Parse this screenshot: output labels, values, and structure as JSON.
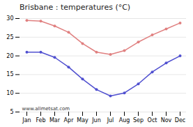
{
  "chart_data": {
    "type": "line",
    "title": "Brisbane : temperatures (°C)",
    "categories": [
      "Jan",
      "Feb",
      "Mar",
      "Apr",
      "May",
      "Jun",
      "Jul",
      "Aug",
      "Sep",
      "Oct",
      "Nov",
      "Dec"
    ],
    "series": [
      {
        "color": "#e08080",
        "marker": "circle",
        "values": [
          29.5,
          29.3,
          28.0,
          26.3,
          23.3,
          21.0,
          20.4,
          21.4,
          23.7,
          25.6,
          27.2,
          28.8
        ]
      },
      {
        "color": "#5050d0",
        "marker": "circle",
        "values": [
          21.0,
          21.0,
          19.6,
          17.0,
          13.8,
          11.0,
          9.3,
          10.1,
          12.5,
          15.7,
          18.1,
          20.0
        ]
      }
    ],
    "ylim": [
      5,
      30
    ],
    "yticks": [
      5,
      10,
      15,
      20,
      25,
      30
    ],
    "grid": true,
    "annotations": [
      "www.allmetsat.com"
    ]
  }
}
